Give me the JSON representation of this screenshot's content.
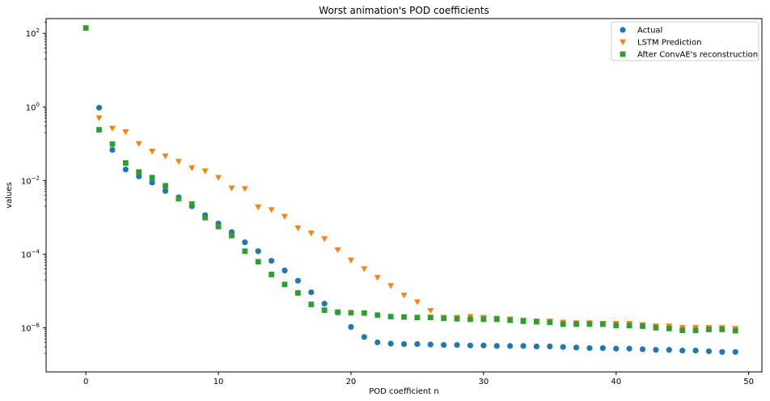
{
  "chart_data": {
    "type": "scatter",
    "title": "Worst animation's POD coefficients",
    "xlabel": "POD coefficient n",
    "ylabel": "values",
    "y_scale": "log",
    "xlim": [
      -3,
      51
    ],
    "ylim_log10": [
      -7.2,
      2.4
    ],
    "x_ticks": [
      0,
      10,
      20,
      30,
      40,
      50
    ],
    "y_ticks": [
      {
        "exp": 2,
        "base": "10",
        "sup": "2"
      },
      {
        "exp": 0,
        "base": "10",
        "sup": "0"
      },
      {
        "exp": -2,
        "base": "10",
        "sup": "−2"
      },
      {
        "exp": -4,
        "base": "10",
        "sup": "−4"
      },
      {
        "exp": -6,
        "base": "10",
        "sup": "−6"
      }
    ],
    "legend_position": "top-right",
    "series": [
      {
        "name": "Actual",
        "marker": "circle",
        "color": "#1f77b4",
        "x": [
          1,
          2,
          3,
          4,
          5,
          6,
          7,
          8,
          9,
          10,
          11,
          12,
          13,
          14,
          15,
          16,
          17,
          18,
          19,
          20,
          21,
          22,
          23,
          24,
          25,
          26,
          27,
          28,
          29,
          30,
          31,
          32,
          33,
          34,
          35,
          36,
          37,
          38,
          39,
          40,
          41,
          42,
          43,
          44,
          45,
          46,
          47,
          48,
          49
        ],
        "y": [
          0.95,
          0.068,
          0.02,
          0.013,
          0.0088,
          0.0052,
          0.0035,
          0.002,
          0.00115,
          0.00068,
          0.0004,
          0.00021,
          0.00012,
          6.6e-05,
          3.6e-05,
          1.9e-05,
          9.2e-06,
          4.5e-06,
          2.6e-06,
          1.05e-06,
          5.6e-07,
          4e-07,
          3.7e-07,
          3.6e-07,
          3.6e-07,
          3.5e-07,
          3.4e-07,
          3.4e-07,
          3.3e-07,
          3.3e-07,
          3.2e-07,
          3.2e-07,
          3.2e-07,
          3.1e-07,
          3.1e-07,
          3e-07,
          2.9e-07,
          2.8e-07,
          2.8e-07,
          2.7e-07,
          2.7e-07,
          2.6e-07,
          2.5e-07,
          2.5e-07,
          2.4e-07,
          2.4e-07,
          2.3e-07,
          2.2e-07,
          2.2e-07
        ]
      },
      {
        "name": "LSTM Prediction",
        "marker": "triangle-down",
        "color": "#ff7f0e",
        "x": [
          1,
          2,
          3,
          4,
          5,
          6,
          7,
          8,
          9,
          10,
          11,
          12,
          13,
          14,
          15,
          16,
          17,
          18,
          19,
          20,
          21,
          22,
          23,
          24,
          25,
          26,
          27,
          28,
          29,
          30,
          31,
          32,
          33,
          34,
          35,
          36,
          37,
          38,
          39,
          40,
          41,
          42,
          43,
          44,
          45,
          46,
          47,
          48,
          49
        ],
        "y": [
          0.5,
          0.26,
          0.21,
          0.1,
          0.062,
          0.046,
          0.033,
          0.022,
          0.018,
          0.012,
          0.0062,
          0.006,
          0.0019,
          0.0016,
          0.00105,
          0.00051,
          0.00037,
          0.00026,
          0.00013,
          6.8e-05,
          4e-05,
          2.3e-05,
          1.38e-05,
          7.6e-06,
          5e-06,
          2.9e-06,
          1.9e-06,
          1.9e-06,
          2e-06,
          1.9e-06,
          1.8e-06,
          1.7e-06,
          1.6e-06,
          1.5e-06,
          1.5e-06,
          1.4e-06,
          1.35e-06,
          1.35e-06,
          1.3e-06,
          1.3e-06,
          1.3e-06,
          1.2e-06,
          1.1e-06,
          1.1e-06,
          1e-06,
          1e-06,
          1e-06,
          1e-06,
          9.5e-07
        ]
      },
      {
        "name": "After ConvAE's reconstruction",
        "marker": "square",
        "color": "#2ca02c",
        "x": [
          0,
          1,
          2,
          3,
          4,
          5,
          6,
          7,
          8,
          9,
          10,
          11,
          12,
          13,
          14,
          15,
          16,
          17,
          18,
          19,
          20,
          21,
          22,
          23,
          24,
          25,
          26,
          27,
          28,
          29,
          30,
          31,
          32,
          33,
          34,
          35,
          36,
          37,
          38,
          39,
          40,
          41,
          42,
          43,
          44,
          45,
          46,
          47,
          48,
          49
        ],
        "y": [
          140,
          0.24,
          0.098,
          0.03,
          0.017,
          0.012,
          0.0072,
          0.0032,
          0.0023,
          0.00098,
          0.00056,
          0.00032,
          0.00012,
          6.2e-05,
          2.8e-05,
          1.5e-05,
          8.8e-06,
          4.3e-06,
          3e-06,
          2.65e-06,
          2.55e-06,
          2.5e-06,
          2.2e-06,
          2e-06,
          1.95e-06,
          1.9e-06,
          1.9e-06,
          1.8e-06,
          1.75e-06,
          1.7e-06,
          1.7e-06,
          1.7e-06,
          1.6e-06,
          1.5e-06,
          1.45e-06,
          1.4e-06,
          1.25e-06,
          1.25e-06,
          1.25e-06,
          1.25e-06,
          1.15e-06,
          1.15e-06,
          1.1e-06,
          1e-06,
          9.5e-07,
          8.5e-07,
          8.5e-07,
          9e-07,
          9e-07,
          8.3e-07
        ]
      }
    ]
  }
}
